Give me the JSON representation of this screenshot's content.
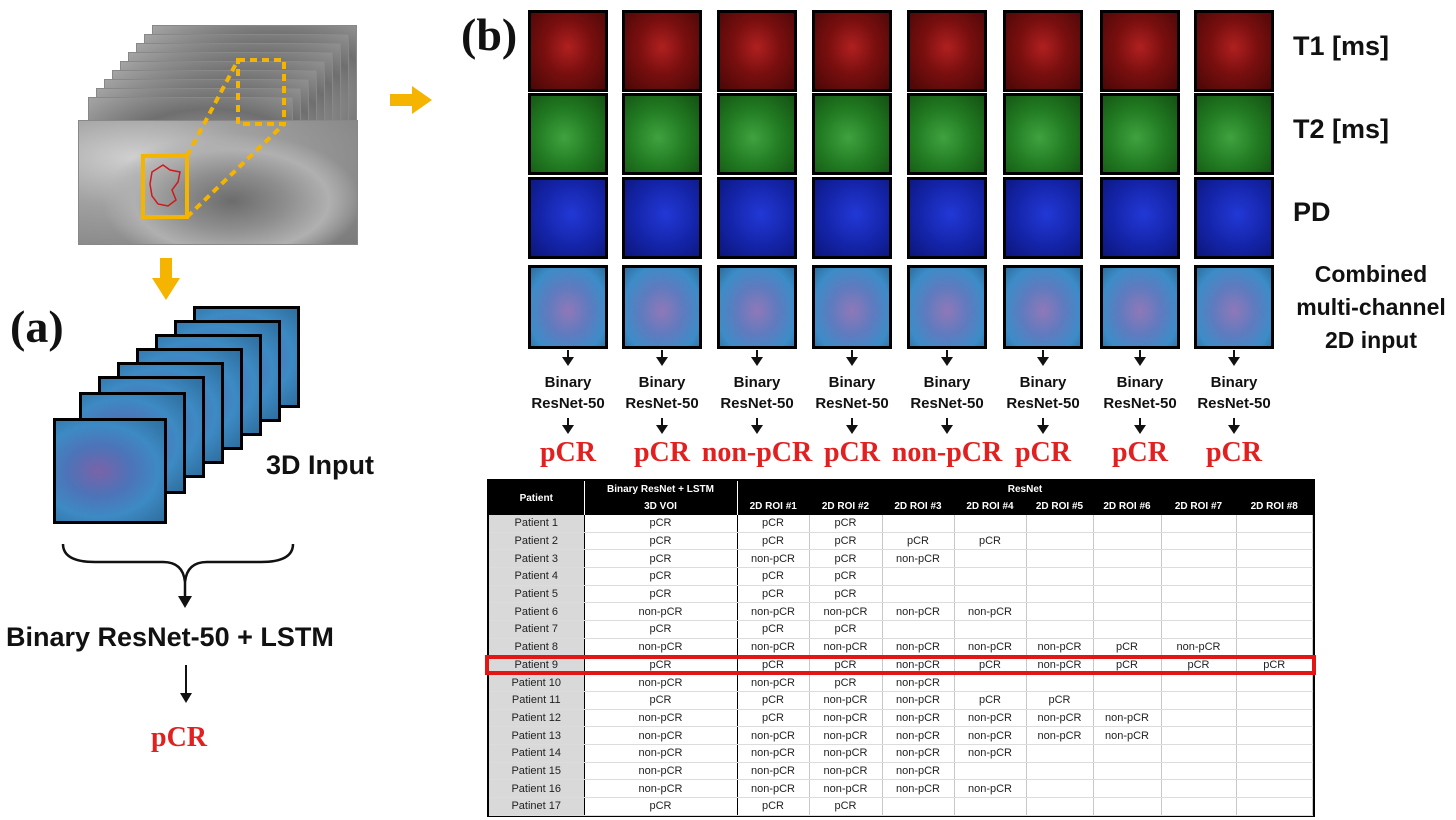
{
  "panel_a": {
    "label": "(a)",
    "input_label": "3D Input",
    "model_label": "Binary ResNet-50 + LSTM",
    "output_label": "pCR"
  },
  "panel_b": {
    "label": "(b)",
    "row_labels": [
      "T1 [ms]",
      "T2 [ms]",
      "PD",
      "Combined",
      "multi-channel",
      "2D input"
    ],
    "model_line1": "Binary",
    "model_line2": "ResNet-50",
    "outcomes": [
      "pCR",
      "pCR",
      "non-pCR",
      "pCR",
      "non-pCR",
      "pCR",
      "pCR",
      "pCR"
    ]
  },
  "colors": {
    "accent_red": "#e32020",
    "arrow_orange": "#f5b400",
    "t1": "#7a0f0f",
    "t2": "#217a21",
    "pd": "#1424a8"
  },
  "table": {
    "header_patient": "Patient",
    "header_lstm": "Binary ResNet + LSTM",
    "header_resnet": "ResNet",
    "subheaders": [
      "3D VOI",
      "2D ROI #1",
      "2D ROI #2",
      "2D ROI #3",
      "2D ROI #4",
      "2D ROI #5",
      "2D ROI #6",
      "2D ROI #7",
      "2D ROI #8"
    ],
    "rows": [
      [
        "Patient 1",
        "pCR",
        "pCR",
        "pCR",
        "",
        "",
        "",
        "",
        "",
        ""
      ],
      [
        "Patient 2",
        "pCR",
        "pCR",
        "pCR",
        "pCR",
        "pCR",
        "",
        "",
        "",
        ""
      ],
      [
        "Patient 3",
        "pCR",
        "non-pCR",
        "pCR",
        "non-pCR",
        "",
        "",
        "",
        "",
        ""
      ],
      [
        "Patient 4",
        "pCR",
        "pCR",
        "pCR",
        "",
        "",
        "",
        "",
        "",
        ""
      ],
      [
        "Patient 5",
        "pCR",
        "pCR",
        "pCR",
        "",
        "",
        "",
        "",
        "",
        ""
      ],
      [
        "Patient 6",
        "non-pCR",
        "non-pCR",
        "non-pCR",
        "non-pCR",
        "non-pCR",
        "",
        "",
        "",
        ""
      ],
      [
        "Patient 7",
        "pCR",
        "pCR",
        "pCR",
        "",
        "",
        "",
        "",
        "",
        ""
      ],
      [
        "Patient 8",
        "non-pCR",
        "non-pCR",
        "non-pCR",
        "non-pCR",
        "non-pCR",
        "non-pCR",
        "pCR",
        "non-pCR",
        ""
      ],
      [
        "Patient 9",
        "pCR",
        "pCR",
        "pCR",
        "non-pCR",
        "pCR",
        "non-pCR",
        "pCR",
        "pCR",
        "pCR"
      ],
      [
        "Patient 10",
        "non-pCR",
        "non-pCR",
        "pCR",
        "non-pCR",
        "",
        "",
        "",
        "",
        ""
      ],
      [
        "Patient 11",
        "pCR",
        "pCR",
        "non-pCR",
        "non-pCR",
        "pCR",
        "pCR",
        "",
        "",
        ""
      ],
      [
        "Patient 12",
        "non-pCR",
        "pCR",
        "non-pCR",
        "non-pCR",
        "non-pCR",
        "non-pCR",
        "non-pCR",
        "",
        ""
      ],
      [
        "Patient 13",
        "non-pCR",
        "non-pCR",
        "non-pCR",
        "non-pCR",
        "non-pCR",
        "non-pCR",
        "non-pCR",
        "",
        ""
      ],
      [
        "Patient 14",
        "non-pCR",
        "non-pCR",
        "non-pCR",
        "non-pCR",
        "non-pCR",
        "",
        "",
        "",
        ""
      ],
      [
        "Patient 15",
        "non-pCR",
        "non-pCR",
        "non-pCR",
        "non-pCR",
        "",
        "",
        "",
        "",
        ""
      ],
      [
        "Patient 16",
        "non-pCR",
        "non-pCR",
        "non-pCR",
        "non-pCR",
        "non-pCR",
        "",
        "",
        "",
        ""
      ],
      [
        "Patinet 17",
        "pCR",
        "pCR",
        "pCR",
        "",
        "",
        "",
        "",
        "",
        ""
      ]
    ],
    "highlighted_row": "Patient 9"
  }
}
